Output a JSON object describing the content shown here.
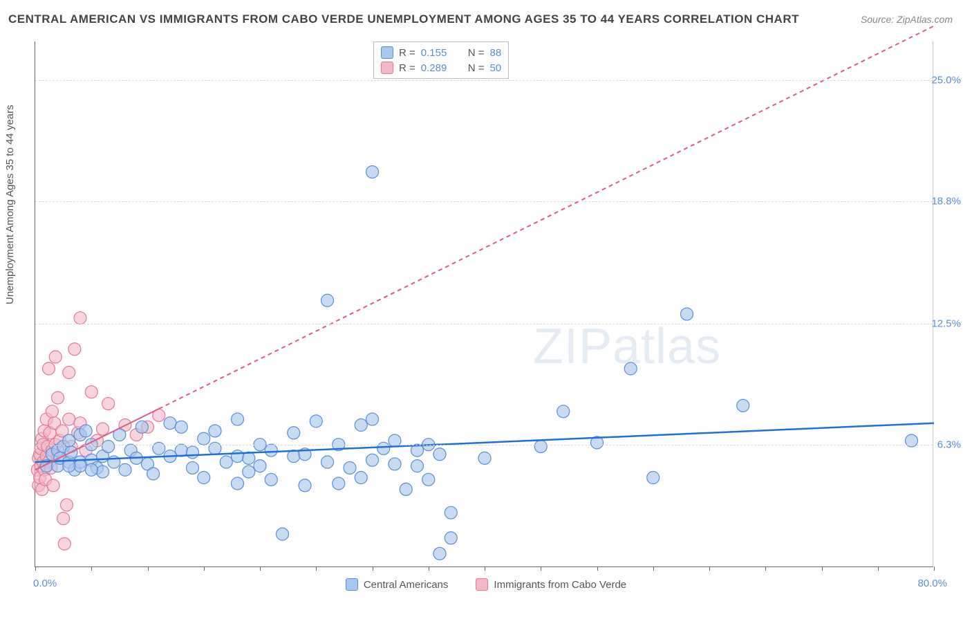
{
  "title": "CENTRAL AMERICAN VS IMMIGRANTS FROM CABO VERDE UNEMPLOYMENT AMONG AGES 35 TO 44 YEARS CORRELATION CHART",
  "source": "Source: ZipAtlas.com",
  "watermark": "ZIPatlas",
  "yaxis_label": "Unemployment Among Ages 35 to 44 years",
  "chart": {
    "type": "scatter",
    "xlim": [
      0,
      80
    ],
    "ylim": [
      0,
      27
    ],
    "x_min_label": "0.0%",
    "x_max_label": "80.0%",
    "y_ticks": [
      {
        "v": 6.3,
        "label": "6.3%"
      },
      {
        "v": 12.5,
        "label": "12.5%"
      },
      {
        "v": 18.8,
        "label": "18.8%"
      },
      {
        "v": 25.0,
        "label": "25.0%"
      }
    ],
    "x_tick_step": 5,
    "background_color": "#ffffff",
    "grid_color": "#d8d8d8",
    "series": [
      {
        "id": "central_americans",
        "label": "Central Americans",
        "fill": "#a9c7ec",
        "stroke": "#5b8dd6",
        "marker_opacity": 0.65,
        "marker_r": 9,
        "R": "0.155",
        "N": "88",
        "trend": {
          "color": "#1e6fd9",
          "width": 2.5,
          "dash": "none",
          "x1": 0,
          "y1": 5.4,
          "x2": 80,
          "y2": 7.4
        },
        "points": [
          [
            1,
            5.2
          ],
          [
            1.5,
            5.8
          ],
          [
            2,
            6.0
          ],
          [
            2,
            5.2
          ],
          [
            2.2,
            5.6
          ],
          [
            2.5,
            6.2
          ],
          [
            3,
            6.5
          ],
          [
            3,
            5.4
          ],
          [
            3.2,
            5.9
          ],
          [
            3.5,
            5.0
          ],
          [
            4,
            6.8
          ],
          [
            4,
            5.4
          ],
          [
            4,
            5.2
          ],
          [
            4.5,
            7.0
          ],
          [
            5,
            5.5
          ],
          [
            5,
            6.3
          ],
          [
            5.5,
            5.1
          ],
          [
            6,
            5.7
          ],
          [
            6,
            4.9
          ],
          [
            6.5,
            6.2
          ],
          [
            7,
            5.4
          ],
          [
            7.5,
            6.8
          ],
          [
            8,
            5.0
          ],
          [
            8.5,
            6.0
          ],
          [
            9,
            5.6
          ],
          [
            9.5,
            7.2
          ],
          [
            10,
            5.3
          ],
          [
            10.5,
            4.8
          ],
          [
            11,
            6.1
          ],
          [
            12,
            5.7
          ],
          [
            12,
            7.4
          ],
          [
            13,
            6.0
          ],
          [
            13,
            7.2
          ],
          [
            14,
            5.9
          ],
          [
            14,
            5.1
          ],
          [
            15,
            6.6
          ],
          [
            15,
            4.6
          ],
          [
            16,
            7.0
          ],
          [
            16,
            6.1
          ],
          [
            17,
            5.4
          ],
          [
            18,
            5.7
          ],
          [
            18,
            4.3
          ],
          [
            18,
            7.6
          ],
          [
            19,
            4.9
          ],
          [
            19,
            5.6
          ],
          [
            20,
            6.3
          ],
          [
            20,
            5.2
          ],
          [
            21,
            4.5
          ],
          [
            21,
            6.0
          ],
          [
            22,
            1.7
          ],
          [
            23,
            5.7
          ],
          [
            23,
            6.9
          ],
          [
            24,
            5.8
          ],
          [
            24,
            4.2
          ],
          [
            25,
            7.5
          ],
          [
            26,
            5.4
          ],
          [
            26,
            13.7
          ],
          [
            27,
            6.3
          ],
          [
            27,
            4.3
          ],
          [
            28,
            5.1
          ],
          [
            29,
            7.3
          ],
          [
            29,
            4.6
          ],
          [
            30,
            7.6
          ],
          [
            30,
            5.5
          ],
          [
            31,
            6.1
          ],
          [
            32,
            5.3
          ],
          [
            32,
            6.5
          ],
          [
            33,
            4.0
          ],
          [
            34,
            6.0
          ],
          [
            34,
            5.2
          ],
          [
            35,
            6.3
          ],
          [
            35,
            4.5
          ],
          [
            36,
            5.8
          ],
          [
            36,
            0.7
          ],
          [
            37,
            1.5
          ],
          [
            37,
            2.8
          ],
          [
            30,
            20.3
          ],
          [
            40,
            5.6
          ],
          [
            45,
            6.2
          ],
          [
            47,
            8.0
          ],
          [
            50,
            6.4
          ],
          [
            53,
            10.2
          ],
          [
            55,
            4.6
          ],
          [
            58,
            13.0
          ],
          [
            63,
            8.3
          ],
          [
            78,
            6.5
          ],
          [
            3,
            5.2
          ],
          [
            5,
            5.0
          ]
        ]
      },
      {
        "id": "cabo_verde",
        "label": "Immigrants from Cabo Verde",
        "fill": "#f4b7c6",
        "stroke": "#e27a97",
        "marker_opacity": 0.6,
        "marker_r": 9,
        "R": "0.289",
        "N": "50",
        "trend": {
          "color": "#e05a84",
          "width": 2,
          "dash": "6 5",
          "x1": 0,
          "y1": 5.0,
          "x2": 80,
          "y2": 27.8,
          "solid_until_x": 11
        },
        "points": [
          [
            0.2,
            5.0
          ],
          [
            0.3,
            4.2
          ],
          [
            0.3,
            5.6
          ],
          [
            0.4,
            5.8
          ],
          [
            0.4,
            4.6
          ],
          [
            0.5,
            6.1
          ],
          [
            0.5,
            5.2
          ],
          [
            0.6,
            6.6
          ],
          [
            0.6,
            4.0
          ],
          [
            0.7,
            6.3
          ],
          [
            0.7,
            5.4
          ],
          [
            0.8,
            7.0
          ],
          [
            0.8,
            5.0
          ],
          [
            0.9,
            4.5
          ],
          [
            1.0,
            7.6
          ],
          [
            1.0,
            5.7
          ],
          [
            1.1,
            6.2
          ],
          [
            1.2,
            5.4
          ],
          [
            1.2,
            10.2
          ],
          [
            1.3,
            6.9
          ],
          [
            1.4,
            5.1
          ],
          [
            1.5,
            8.0
          ],
          [
            1.5,
            6.0
          ],
          [
            1.6,
            4.2
          ],
          [
            1.7,
            7.4
          ],
          [
            1.8,
            6.3
          ],
          [
            1.8,
            10.8
          ],
          [
            2.0,
            5.7
          ],
          [
            2.0,
            8.7
          ],
          [
            2.2,
            6.5
          ],
          [
            2.4,
            7.0
          ],
          [
            2.5,
            2.5
          ],
          [
            2.6,
            1.2
          ],
          [
            2.8,
            3.2
          ],
          [
            3.0,
            10.0
          ],
          [
            3.0,
            7.6
          ],
          [
            3.2,
            6.2
          ],
          [
            3.5,
            11.2
          ],
          [
            3.8,
            6.9
          ],
          [
            4.0,
            12.8
          ],
          [
            4.0,
            7.4
          ],
          [
            4.5,
            6.0
          ],
          [
            5.0,
            9.0
          ],
          [
            5.5,
            6.5
          ],
          [
            6.0,
            7.1
          ],
          [
            6.5,
            8.4
          ],
          [
            8.0,
            7.3
          ],
          [
            9.0,
            6.8
          ],
          [
            10.0,
            7.2
          ],
          [
            11.0,
            7.8
          ]
        ]
      }
    ]
  },
  "stats_legend": {
    "r_label": "R  =",
    "n_label": "N  ="
  }
}
